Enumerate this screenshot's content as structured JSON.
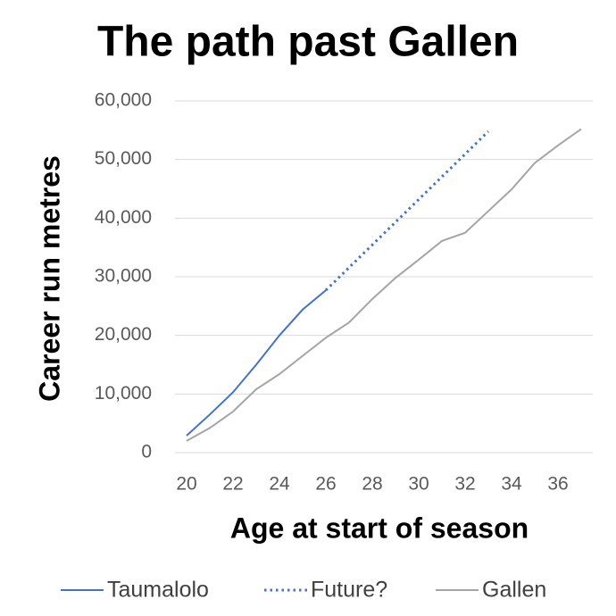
{
  "chart_data": {
    "type": "line",
    "title": "The path past Gallen",
    "x_label": "Age at start of season",
    "y_label": "Career  run metres",
    "xlim": [
      19.5,
      37.5
    ],
    "xticks": [
      20,
      22,
      24,
      26,
      28,
      30,
      32,
      34,
      36
    ],
    "ylim": [
      0,
      60000
    ],
    "yticks": [
      0,
      {
        "value": 10000,
        "label": "10,000"
      },
      {
        "value": 20000,
        "label": "20,000"
      },
      {
        "value": 30000,
        "label": "30,000"
      },
      {
        "value": 40000,
        "label": "40,000"
      },
      {
        "value": 50000,
        "label": "50,000"
      },
      {
        "value": 60000,
        "label": "60,000"
      }
    ],
    "grid": true,
    "legend": "bottom",
    "series": [
      {
        "name": "Taumalolo",
        "color": "#4472c4",
        "style": "solid",
        "x": [
          20,
          21,
          22,
          23,
          24,
          25,
          26
        ],
        "values": [
          2900,
          6500,
          10300,
          15000,
          20000,
          24400,
          27700
        ]
      },
      {
        "name": "Future?",
        "color": "#4472c4",
        "style": "dotted",
        "x": [
          26,
          33
        ],
        "values": [
          27700,
          54800
        ]
      },
      {
        "name": "Gallen",
        "color": "#a5a5a5",
        "style": "solid",
        "x": [
          20,
          21,
          22,
          23,
          24,
          25,
          26,
          27,
          28,
          29,
          30,
          31,
          32,
          33,
          34,
          35,
          36,
          37
        ],
        "values": [
          2000,
          4200,
          7000,
          10800,
          13400,
          16500,
          19600,
          22200,
          26200,
          29800,
          32900,
          36100,
          37500,
          41200,
          44900,
          49400,
          52400,
          55200
        ]
      }
    ]
  }
}
